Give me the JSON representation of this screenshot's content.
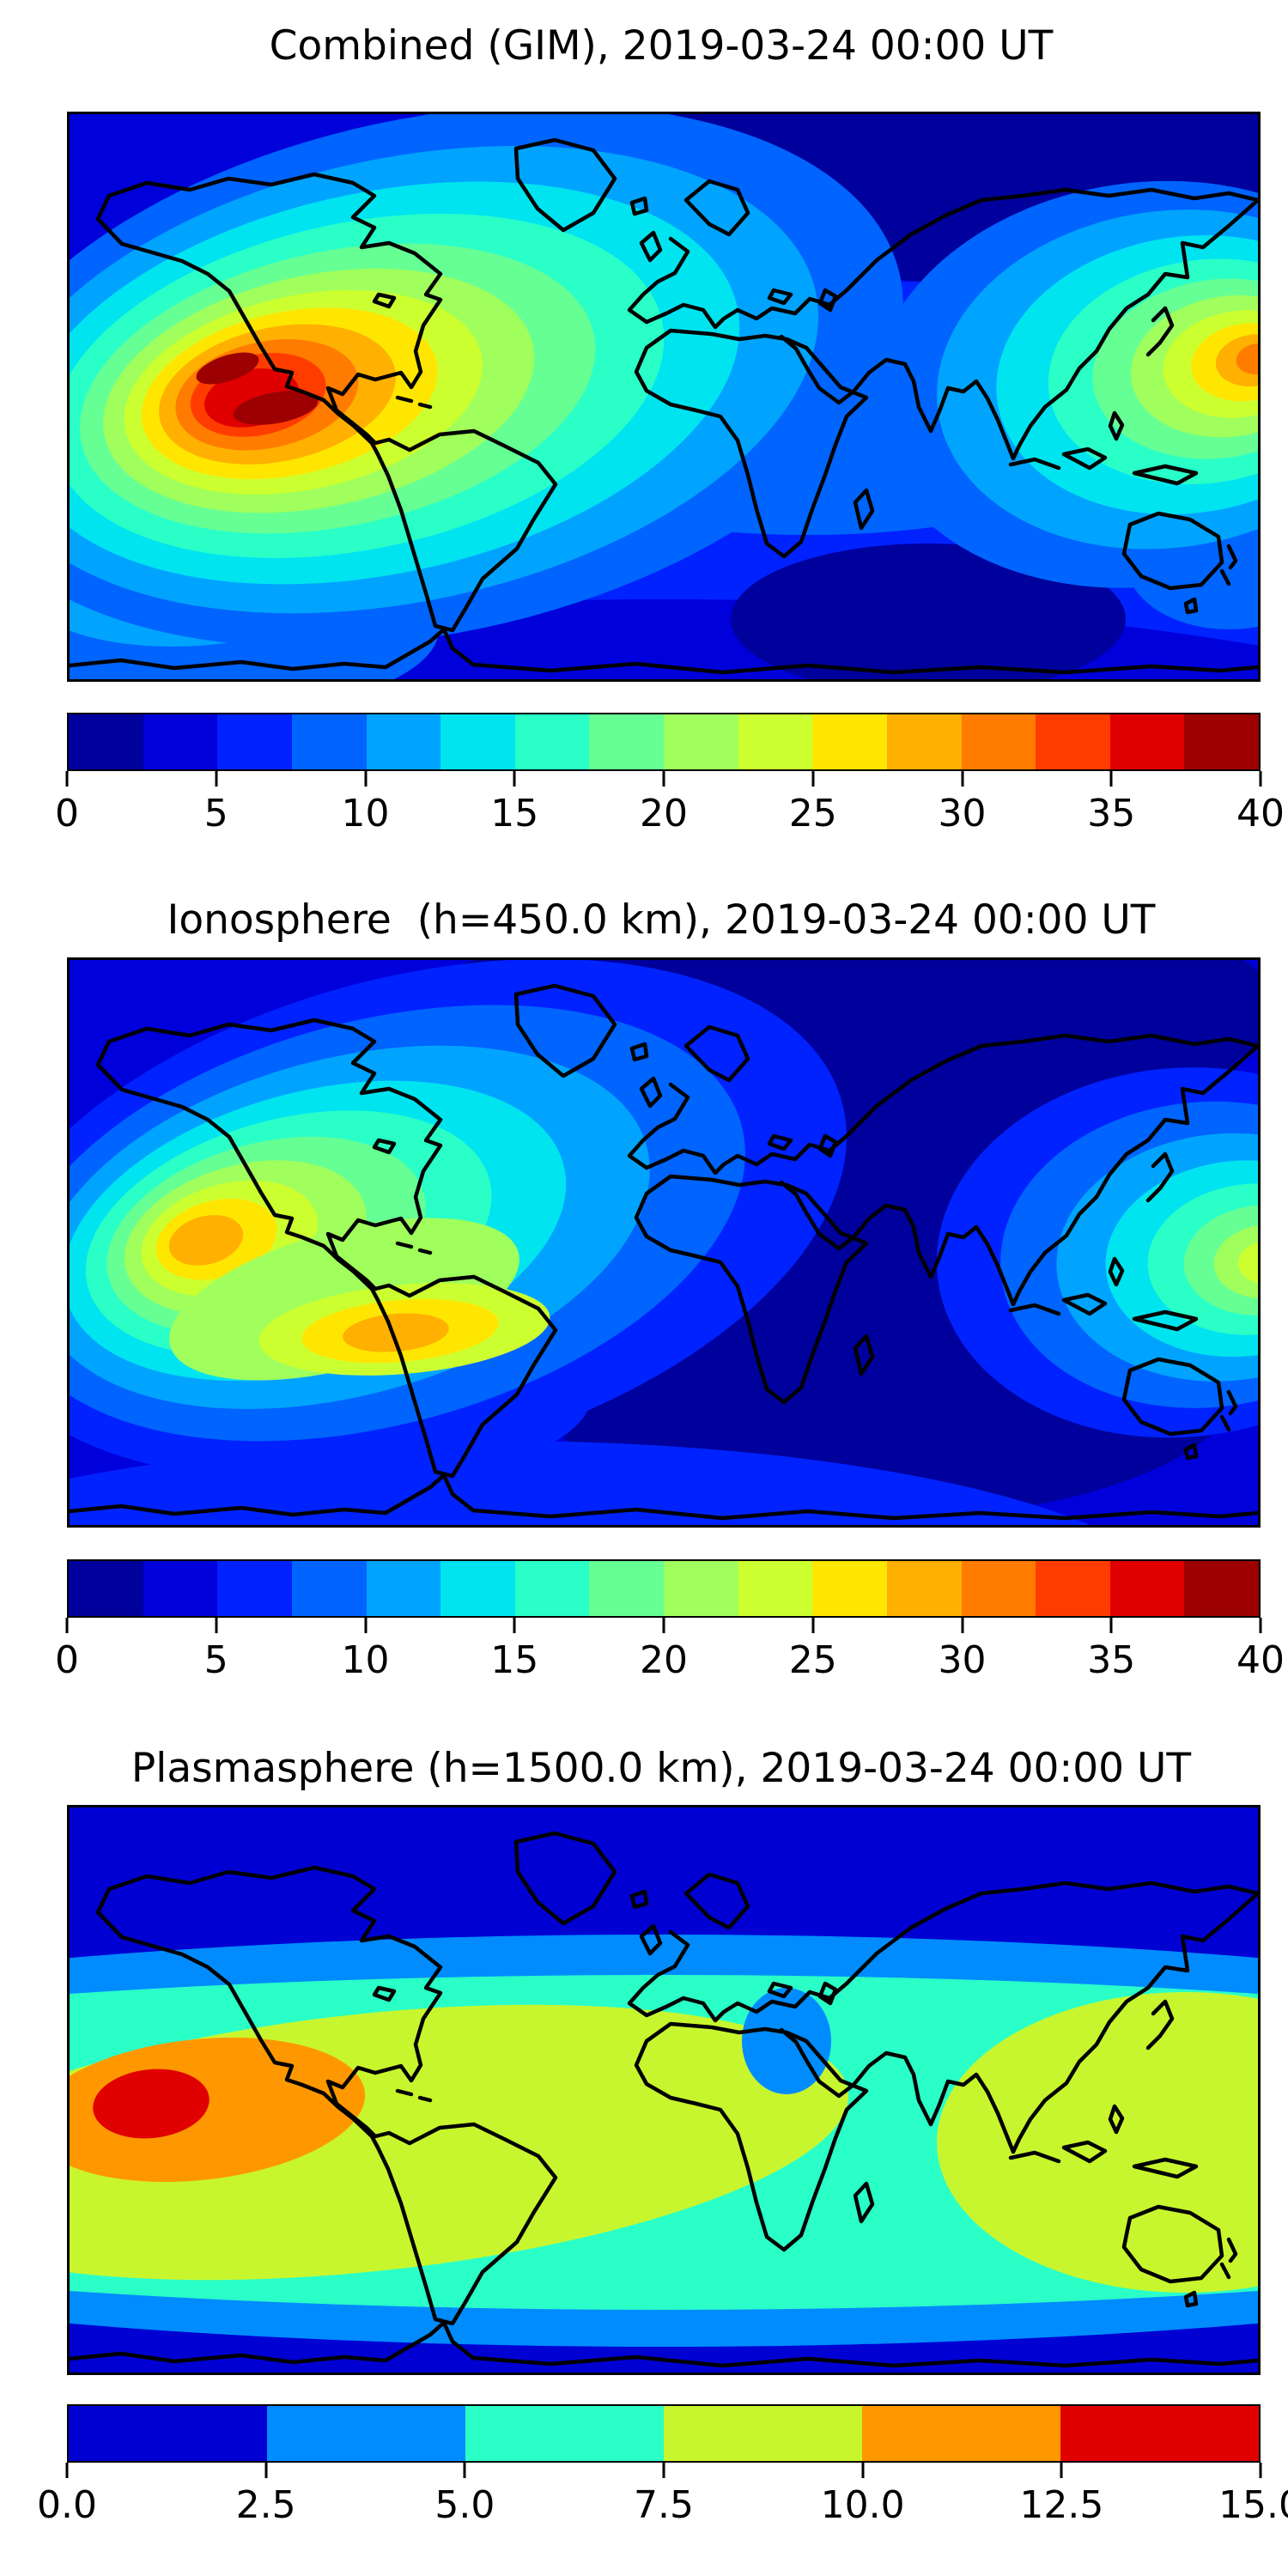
{
  "figure": {
    "kind": "matplotlib-style stacked contour maps of total electron content",
    "panels": [
      {
        "id": "combined",
        "title": "Combined (GIM), 2019-03-24 00:00 UT",
        "palette": "jet16",
        "colorbar": {
          "ticks": [
            "0",
            "5",
            "10",
            "15",
            "20",
            "25",
            "30",
            "35",
            "40"
          ]
        }
      },
      {
        "id": "ionosphere",
        "title": "Ionosphere  (h=450.0 km), 2019-03-24 00:00 UT",
        "palette": "jet16",
        "colorbar": {
          "ticks": [
            "0",
            "5",
            "10",
            "15",
            "20",
            "25",
            "30",
            "35",
            "40"
          ]
        }
      },
      {
        "id": "plasmasphere",
        "title": "Plasmasphere (h=1500.0 km), 2019-03-24 00:00 UT",
        "palette": "jet6",
        "colorbar": {
          "ticks": [
            "0.0",
            "2.5",
            "5.0",
            "7.5",
            "10.0",
            "12.5",
            "15.0"
          ]
        }
      }
    ]
  },
  "palettes": {
    "jet16": [
      "#00009c",
      "#0000da",
      "#0022ff",
      "#0064ff",
      "#00a4ff",
      "#00e4f0",
      "#2affc8",
      "#66ff94",
      "#a0ff5c",
      "#ccff30",
      "#ffe600",
      "#ffb000",
      "#ff7c00",
      "#ff3c00",
      "#e00000",
      "#9c0000"
    ],
    "jet6": [
      "#0000d2",
      "#008cff",
      "#2affc8",
      "#c8f62e",
      "#ff9800",
      "#e00000"
    ]
  },
  "colors": {
    "coastline": "#000000",
    "frame": "#000000",
    "background": "#ffffff"
  },
  "chart_data": [
    {
      "type": "heatmap",
      "subtype": "filled-contour world map, equirectangular projection, lon -180..180, lat -90..90",
      "title": "Combined (GIM), 2019-03-24 00:00 UT",
      "colormap": "jet, 16 discrete levels",
      "value_range": [
        0,
        40
      ],
      "level_step": 2.5,
      "colorbar_ticks": [
        0,
        5,
        10,
        15,
        20,
        25,
        30,
        35,
        40
      ],
      "legend_position": "horizontal colorbar below map",
      "features": [
        {
          "name": "eastern-pacific equatorial maximum",
          "approx_lon": -150,
          "approx_lat": 0,
          "peak_value": 40,
          "note": "two dark-red cores ~37.5-40"
        },
        {
          "name": "western-pacific maximum",
          "approx_lon": 170,
          "approx_lat": 8,
          "peak_value": 32
        },
        {
          "name": "north polar minimum (Greenland-Siberia)",
          "value": "0-2.5"
        },
        {
          "name": "south Indian Ocean minimum",
          "approx_lon": 80,
          "approx_lat": -65,
          "value": "0-2.5"
        },
        {
          "name": "ocean background mid-latitudes",
          "value": "5-10"
        }
      ]
    },
    {
      "type": "heatmap",
      "subtype": "filled-contour world map, equirectangular projection",
      "title": "Ionosphere  (h=450.0 km), 2019-03-24 00:00 UT",
      "colormap": "jet, 16 discrete levels",
      "value_range": [
        0,
        40
      ],
      "level_step": 2.5,
      "colorbar_ticks": [
        0,
        5,
        10,
        15,
        20,
        25,
        30,
        35,
        40
      ],
      "features": [
        {
          "name": "eastern-pacific maximum near Hawaii",
          "approx_lon": -152,
          "approx_lat": 18,
          "peak_value": 29
        },
        {
          "name": "secondary south-tropical maximum",
          "approx_lon": -85,
          "approx_lat": -25,
          "peak_value": 29
        },
        {
          "name": "western-pacific maximum at right edge",
          "approx_lon": 178,
          "approx_lat": -5,
          "peak_value": 23
        },
        {
          "name": "Eurasia/Africa/Greenland minimum",
          "value": "0-2.5"
        },
        {
          "name": "ocean background",
          "value": "2.5-5"
        }
      ]
    },
    {
      "type": "heatmap",
      "subtype": "filled-contour world map, equirectangular projection",
      "title": "Plasmasphere (h=1500.0 km), 2019-03-24 00:00 UT",
      "colormap": "jet, 6 discrete levels",
      "value_range": [
        0,
        15
      ],
      "level_step": 2.5,
      "colorbar_ticks": [
        0.0,
        2.5,
        5.0,
        7.5,
        10.0,
        12.5,
        15.0
      ],
      "features": [
        {
          "name": "south-pacific maximum",
          "approx_lon": -160,
          "approx_lat": -5,
          "peak_value": 14,
          "note": "red core inside orange blob"
        },
        {
          "name": "equatorial belt",
          "value": "5-7.5",
          "note": "turquoise band covering low latitudes"
        },
        {
          "name": "yellow-green belt",
          "value": "7.5-10",
          "note": "across South America and west Pacific blob"
        },
        {
          "name": "high-latitude bands north and south",
          "value": "0-2.5"
        },
        {
          "name": "Arabian Sea local dip",
          "approx_lon": 37,
          "approx_lat": 15,
          "value": "2.5-5"
        }
      ]
    }
  ]
}
